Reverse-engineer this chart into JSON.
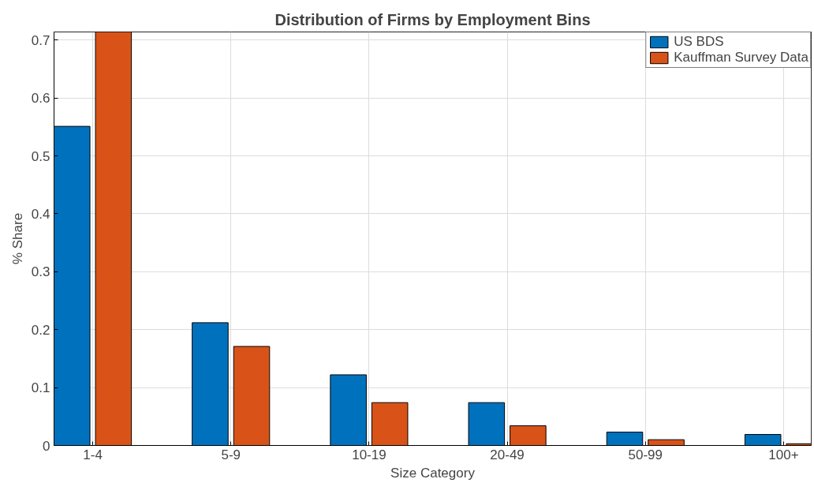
{
  "chart_data": {
    "type": "bar",
    "title": "Distribution of Firms by Employment Bins",
    "xlabel": "Size Category",
    "ylabel": "% Share",
    "categories": [
      "1-4",
      "5-9",
      "10-19",
      "20-49",
      "50-99",
      "100+"
    ],
    "series": [
      {
        "name": "US BDS",
        "color": "#0072bd",
        "values": [
          0.551,
          0.212,
          0.122,
          0.074,
          0.023,
          0.019
        ]
      },
      {
        "name": "Kauffman Survey Data",
        "color": "#d95319",
        "values": [
          0.714,
          0.171,
          0.074,
          0.034,
          0.01,
          0.003
        ]
      }
    ],
    "ylim": [
      0,
      0.714
    ],
    "yticks": [
      0,
      0.1,
      0.2,
      0.3,
      0.4,
      0.5,
      0.6,
      0.7
    ],
    "grid": true,
    "legend": "top right"
  }
}
